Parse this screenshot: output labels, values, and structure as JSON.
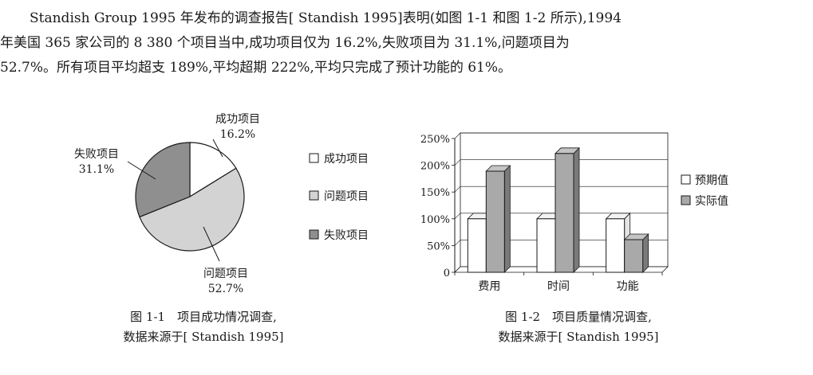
{
  "paragraph": {
    "lines": [
      "Standish Group 1995 年发布的调查报告[ Standish 1995]表明(如图 1-1 和图 1-2 所示),1994",
      "年美国 365 家公司的 8 380 个项目当中,成功项目仅为 16.2%,失败项目为 31.1%,问题项目为",
      "52.7%。所有项目平均超支 189%,平均超期 222%,平均只完成了预计功能的 61%。"
    ]
  },
  "colors": {
    "success": "#ffffff",
    "problem": "#d3d3d3",
    "failure": "#8f8f8f",
    "expected": "#ffffff",
    "actual": "#a9a9a9",
    "ink": "#1a1a1a"
  },
  "chart_data": [
    {
      "type": "pie",
      "slices": [
        {
          "name": "成功项目",
          "value": 16.2,
          "label": "16.2%"
        },
        {
          "name": "问题项目",
          "value": 52.7,
          "label": "52.7%"
        },
        {
          "name": "失败项目",
          "value": 31.1,
          "label": "31.1%"
        }
      ],
      "legend": [
        "成功项目",
        "问题项目",
        "失败项目"
      ],
      "legend_position": "right",
      "caption": [
        "图 1-1　项目成功情况调查,",
        "数据来源于[ Standish 1995]"
      ]
    },
    {
      "type": "bar",
      "categories": [
        "费用",
        "时间",
        "功能"
      ],
      "series": [
        {
          "name": "预期值",
          "values": [
            100,
            100,
            100
          ]
        },
        {
          "name": "实际值",
          "values": [
            189,
            222,
            61
          ]
        }
      ],
      "ylim": [
        0,
        250
      ],
      "yticks": [
        0,
        50,
        100,
        150,
        200,
        250
      ],
      "ytick_labels": [
        "0",
        "50%",
        "100%",
        "150%",
        "200%",
        "250%"
      ],
      "grid": true,
      "legend": [
        "预期值",
        "实际值"
      ],
      "legend_position": "right",
      "caption": [
        "图 1-2　项目质量情况调查,",
        "数据来源于[ Standish 1995]"
      ]
    }
  ]
}
